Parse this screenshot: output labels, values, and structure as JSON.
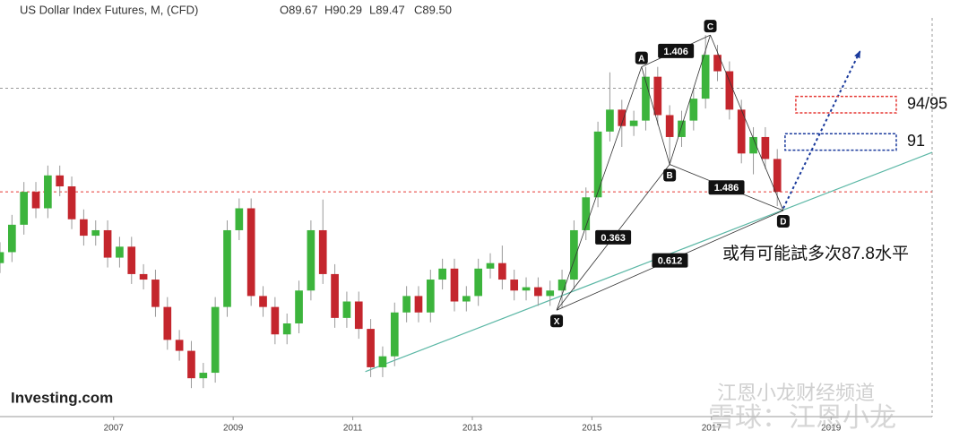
{
  "chart_data": {
    "type": "candlestick",
    "title": "US Dollar Index Futures, M, (CFD)",
    "ohlc_labels": [
      "O89.67",
      "H90.29",
      "L89.47",
      "C89.50"
    ],
    "x": [
      2005.1,
      2005.3,
      2005.5,
      2005.7,
      2005.9,
      2006.1,
      2006.3,
      2006.5,
      2006.7,
      2006.9,
      2007.1,
      2007.3,
      2007.5,
      2007.7,
      2007.9,
      2008.1,
      2008.3,
      2008.5,
      2008.7,
      2008.9,
      2009.1,
      2009.3,
      2009.5,
      2009.7,
      2009.9,
      2010.1,
      2010.3,
      2010.5,
      2010.7,
      2010.9,
      2011.1,
      2011.3,
      2011.5,
      2011.7,
      2011.9,
      2012.1,
      2012.3,
      2012.5,
      2012.7,
      2012.9,
      2013.1,
      2013.3,
      2013.5,
      2013.7,
      2013.9,
      2014.1,
      2014.3,
      2014.5,
      2014.7,
      2014.9,
      2015.1,
      2015.3,
      2015.5,
      2015.7,
      2015.9,
      2016.1,
      2016.3,
      2016.5,
      2016.7,
      2016.9,
      2017.1,
      2017.3,
      2017.5,
      2017.7,
      2017.9,
      2018.1
    ],
    "open": [
      83,
      84,
      86.5,
      89.5,
      88,
      91,
      90,
      87,
      85.5,
      86,
      83.5,
      84.5,
      82,
      81.5,
      79,
      76,
      75,
      72.5,
      73,
      79,
      86,
      88,
      80,
      79,
      76.5,
      77.5,
      80.5,
      86,
      82,
      78,
      79.5,
      77,
      73.5,
      74.5,
      78.5,
      80,
      78.5,
      81.5,
      82.5,
      79.5,
      80,
      82.5,
      83,
      81.5,
      80.5,
      80.8,
      80,
      80.5,
      81.5,
      86,
      89,
      95,
      97,
      95.5,
      96,
      100,
      96.5,
      94.5,
      96,
      98,
      102,
      100.5,
      97,
      93,
      94.5,
      92.5
    ],
    "high": [
      84.9,
      87.4,
      90.4,
      90.4,
      91.9,
      91.9,
      90.9,
      87.9,
      86.9,
      86.9,
      85.4,
      85.4,
      82.9,
      82.4,
      79.9,
      76.9,
      75.9,
      73.9,
      79.9,
      86.9,
      88.9,
      88.9,
      80.9,
      79.9,
      78.4,
      81.4,
      86.9,
      88.8,
      82.9,
      80.4,
      80.4,
      77.9,
      75.4,
      79.4,
      80.9,
      80.9,
      82.4,
      83.4,
      83.4,
      80.9,
      83.4,
      83.9,
      84.6,
      82.4,
      81.7,
      81.7,
      81.4,
      82.4,
      86.9,
      89.9,
      95.9,
      100.4,
      97.9,
      96.9,
      100.9,
      100.9,
      97.4,
      96.9,
      98.9,
      103.8,
      102.9,
      101.4,
      97.9,
      95.4,
      95.4,
      93.4
    ],
    "low": [
      82.1,
      83.1,
      85.6,
      87.1,
      87.1,
      89.1,
      86.1,
      84.6,
      84.6,
      82.6,
      82.6,
      81.1,
      80.6,
      78.1,
      75.1,
      74.1,
      71.6,
      71.6,
      72.1,
      78.1,
      85.1,
      79.1,
      78.1,
      75.6,
      75.6,
      76.6,
      79.6,
      81.1,
      77.1,
      77.1,
      76.1,
      72.6,
      72.6,
      73.6,
      77.6,
      77.6,
      77.6,
      80.6,
      78.6,
      78.6,
      79.1,
      81.6,
      80.6,
      79.6,
      79.6,
      79.1,
      79.1,
      78.9,
      80.6,
      85.1,
      88.1,
      94.1,
      93.6,
      94.6,
      95.1,
      95.6,
      91.9,
      93.6,
      95.1,
      97.1,
      99.6,
      96.1,
      92.1,
      91.1,
      91.6,
      88.2
    ],
    "close": [
      84,
      86.5,
      89.5,
      88,
      91,
      90,
      87,
      85.5,
      86,
      83.5,
      84.5,
      82,
      81.5,
      79,
      76,
      75,
      72.5,
      73,
      79,
      86,
      88,
      80,
      79,
      76.5,
      77.5,
      80.5,
      86,
      82,
      78,
      79.5,
      77,
      73.5,
      74.5,
      78.5,
      80,
      78.5,
      81.5,
      82.5,
      79.5,
      80,
      82.5,
      83,
      81.5,
      80.5,
      80.8,
      80,
      80.5,
      81.5,
      86,
      89,
      95,
      97,
      95.5,
      96,
      100,
      96.5,
      94.5,
      96,
      98,
      102,
      100.5,
      97,
      93,
      94.5,
      92.5,
      89.5
    ],
    "up_color": "#3cb43c",
    "down_color": "#c4262d",
    "xlim": [
      2005.1,
      2020.69
    ],
    "ylim": [
      69,
      107
    ],
    "xticks": [
      2007,
      2009,
      2011,
      2013,
      2015,
      2017,
      2019
    ],
    "hlines": [
      {
        "y": 98.95,
        "color": "#999999"
      },
      {
        "y": 89.5,
        "color": "#e53935"
      }
    ],
    "trendline": {
      "x": [
        2011.21,
        2020.69
      ],
      "y": [
        73.1,
        93.1
      ],
      "color": "#5bb7a5"
    },
    "points": [
      {
        "label": "X",
        "x": 2014.41,
        "y": 78.7
      },
      {
        "label": "A",
        "x": 2015.83,
        "y": 100.9
      },
      {
        "label": "B",
        "x": 2016.3,
        "y": 92.0
      },
      {
        "label": "C",
        "x": 2016.98,
        "y": 103.8
      },
      {
        "label": "D",
        "x": 2018.2,
        "y": 87.8
      }
    ],
    "ratios": [
      {
        "label": "0.363",
        "from": "X",
        "to": "B"
      },
      {
        "label": "1.406",
        "from": "A",
        "to": "C"
      },
      {
        "label": "1.486",
        "from": "B",
        "to": "D"
      },
      {
        "label": "0.612",
        "from": "X",
        "to": "D"
      }
    ],
    "arrow": {
      "x": [
        2018.2,
        2019.49
      ],
      "y": [
        88,
        102.4
      ],
      "color": "#1a3a9c"
    },
    "zones": [
      {
        "label": "94/95",
        "x": [
          2018.41,
          2020.09
        ],
        "y": [
          96.7,
          98.2
        ],
        "color": "#e53935"
      },
      {
        "label": "91",
        "x": [
          2018.23,
          2020.09
        ],
        "y": [
          93.3,
          94.8
        ],
        "color": "#1a3a9c"
      }
    ],
    "annotation": "或有可能試多次87.8水平",
    "logo": "Investing.com",
    "watermark": [
      "江恩小龙财经频道",
      "雪球：江恩小龙"
    ]
  }
}
